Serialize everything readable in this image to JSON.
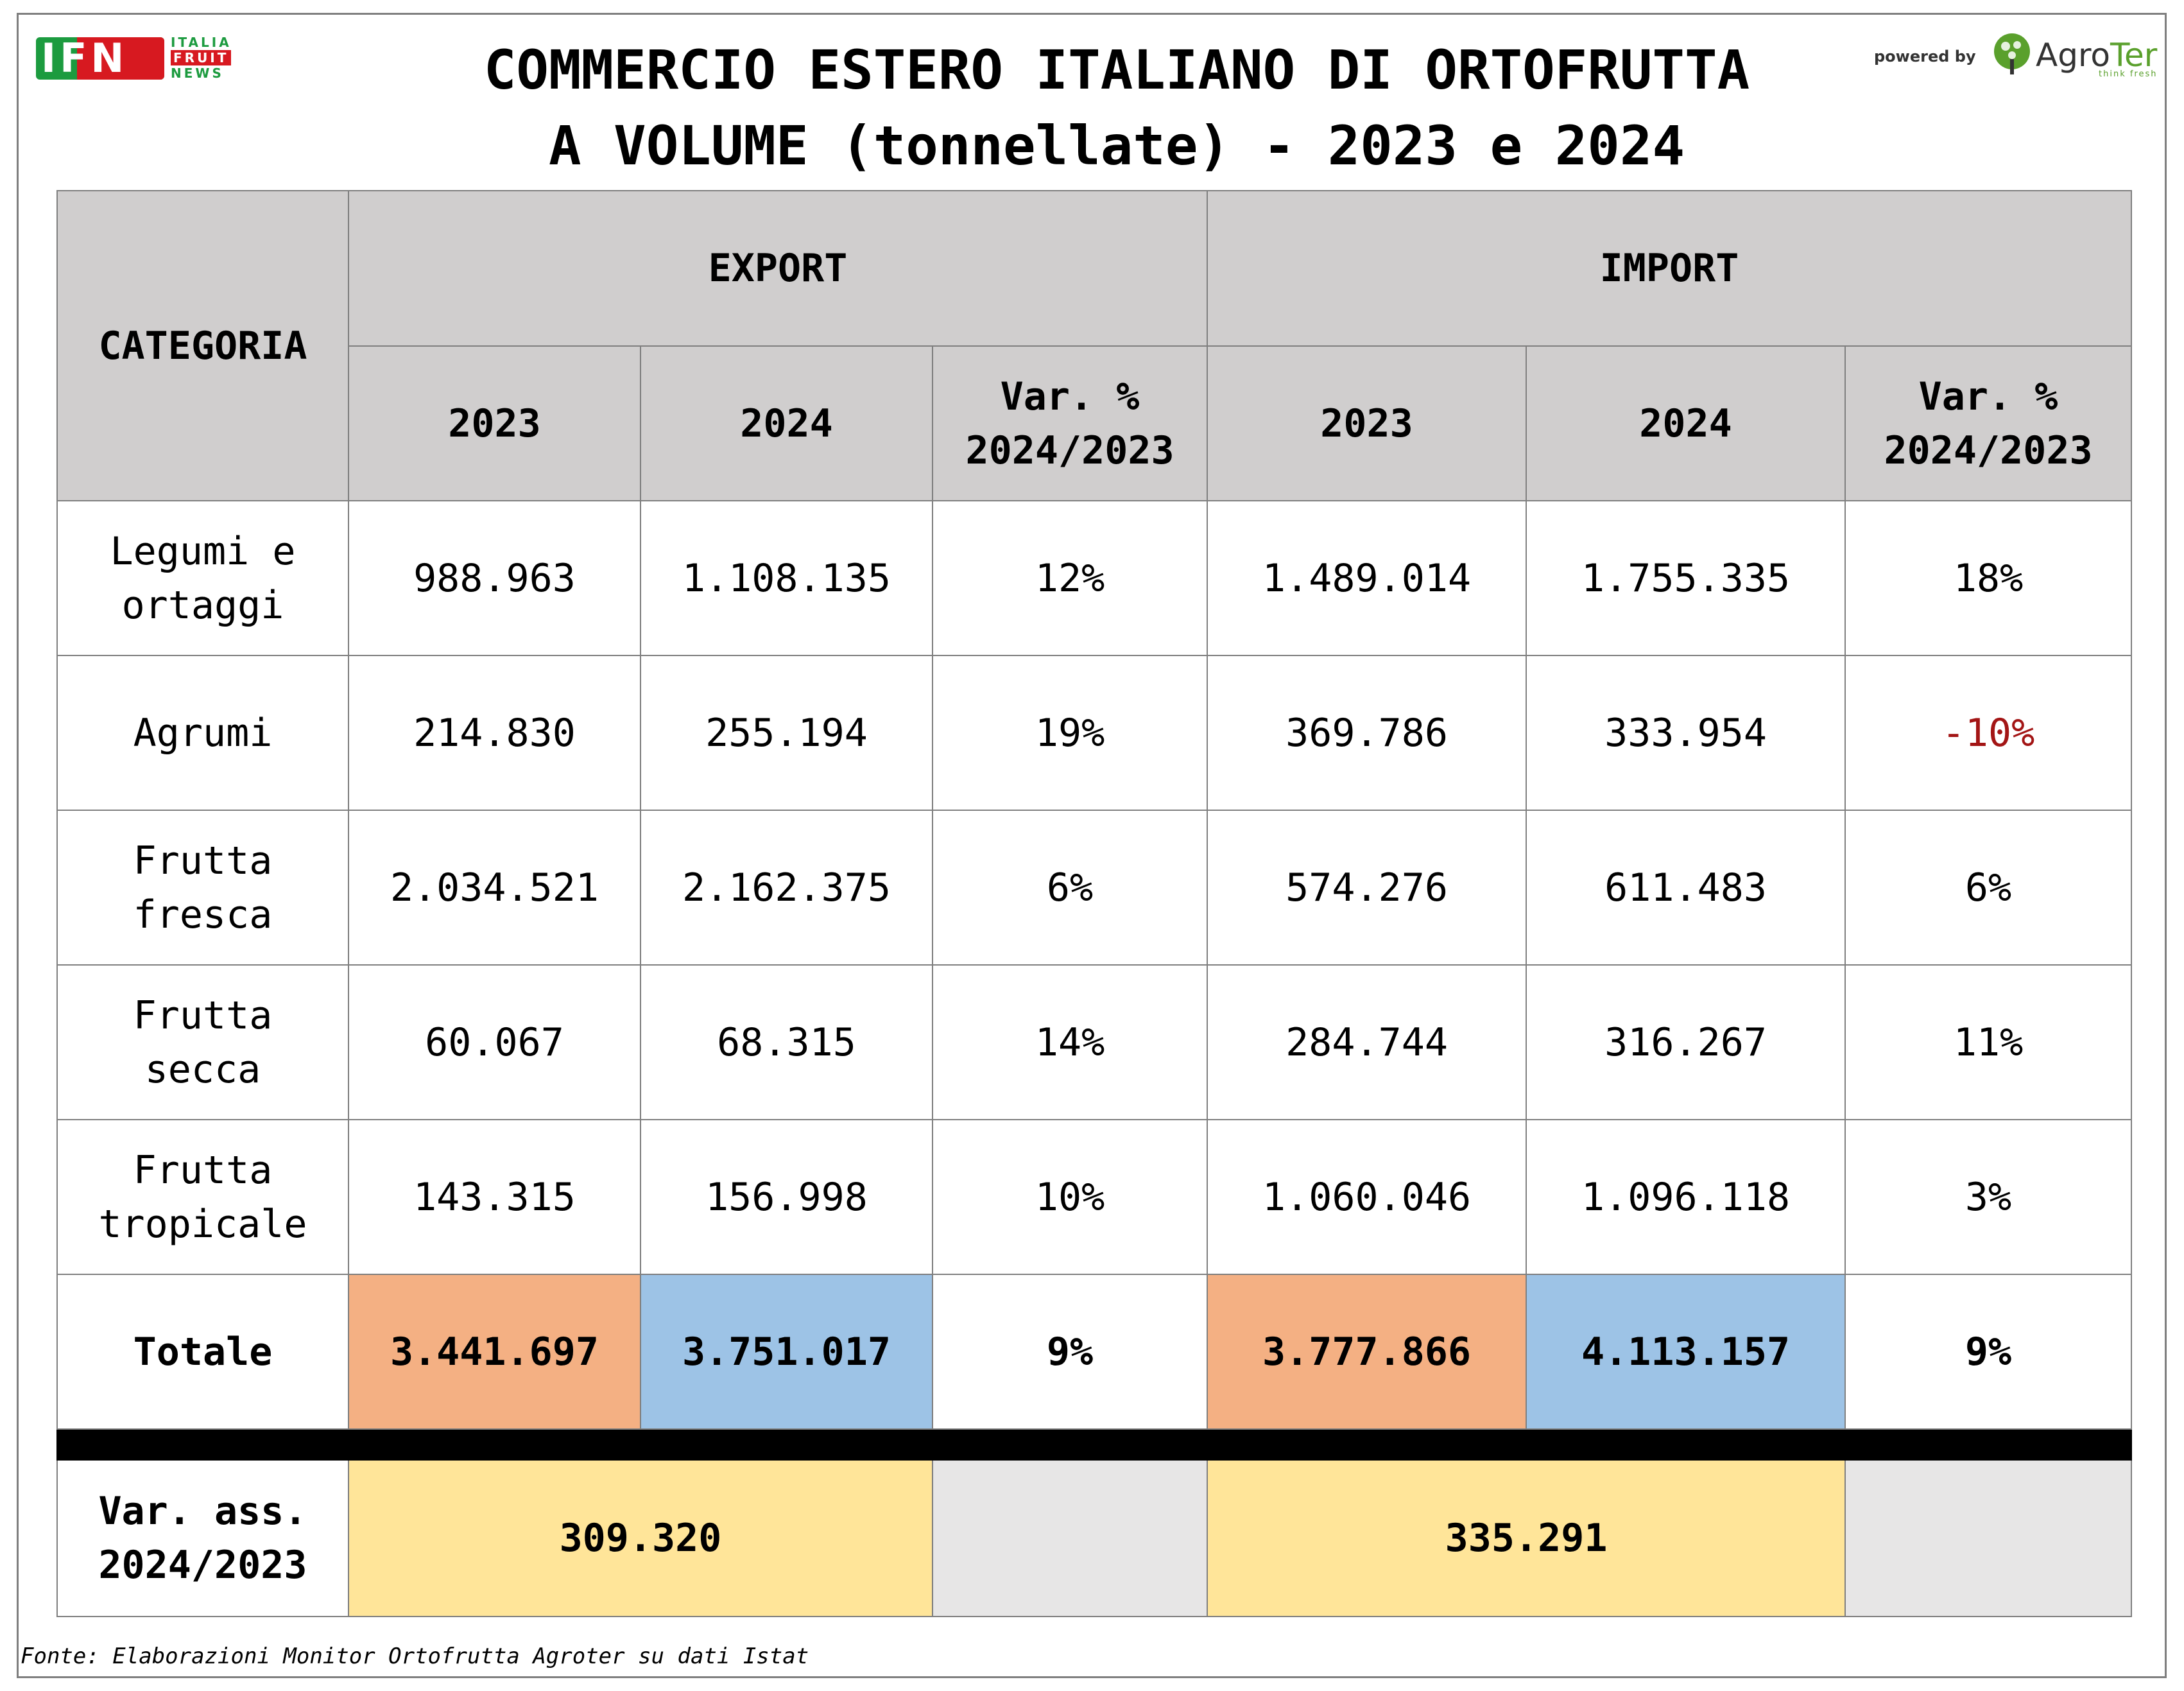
{
  "logo": {
    "letters": "IFN",
    "line1": "ITALIA",
    "line2": "FRUIT",
    "line3": "NEWS"
  },
  "title": {
    "line1": "COMMERCIO ESTERO ITALIANO DI ORTOFRUTTA",
    "line2": "A VOLUME (tonnellate) - 2023 e 2024"
  },
  "sponsor": {
    "powered_by": "powered by",
    "brand_prefix": "Agro",
    "brand_suffix": "Ter",
    "tagline": "think fresh"
  },
  "table": {
    "header": {
      "categoria": "CATEGORIA",
      "export": "EXPORT",
      "import": "IMPORT",
      "col_2023": "2023",
      "col_2024": "2024",
      "var_line1": "Var. %",
      "var_line2": "2024/2023"
    },
    "rows": [
      {
        "category_line1": "Legumi e",
        "category_line2": "ortaggi",
        "exp_2023": "988.963",
        "exp_2024": "1.108.135",
        "exp_var": "12%",
        "imp_2023": "1.489.014",
        "imp_2024": "1.755.335",
        "imp_var": "18%"
      },
      {
        "category_line1": "Agrumi",
        "category_line2": "",
        "exp_2023": "214.830",
        "exp_2024": "255.194",
        "exp_var": "19%",
        "imp_2023": "369.786",
        "imp_2024": "333.954",
        "imp_var": "-10%"
      },
      {
        "category_line1": "Frutta",
        "category_line2": "fresca",
        "exp_2023": "2.034.521",
        "exp_2024": "2.162.375",
        "exp_var": "6%",
        "imp_2023": "574.276",
        "imp_2024": "611.483",
        "imp_var": "6%"
      },
      {
        "category_line1": "Frutta",
        "category_line2": "secca",
        "exp_2023": "60.067",
        "exp_2024": "68.315",
        "exp_var": "14%",
        "imp_2023": "284.744",
        "imp_2024": "316.267",
        "imp_var": "11%"
      },
      {
        "category_line1": "Frutta",
        "category_line2": "tropicale",
        "exp_2023": "143.315",
        "exp_2024": "156.998",
        "exp_var": "10%",
        "imp_2023": "1.060.046",
        "imp_2024": "1.096.118",
        "imp_var": "3%"
      }
    ],
    "total": {
      "label": "Totale",
      "exp_2023": "3.441.697",
      "exp_2024": "3.751.017",
      "exp_var": "9%",
      "imp_2023": "3.777.866",
      "imp_2024": "4.113.157",
      "imp_var": "9%"
    },
    "var_ass": {
      "label_line1": "Var. ass.",
      "label_line2": "2024/2023",
      "export": "309.320",
      "import": "335.291"
    }
  },
  "source": "Fonte: Elaborazioni Monitor Ortofrutta Agroter su dati Istat",
  "colors": {
    "header_bg": "#d0cece",
    "orange_2023": "#f4b083",
    "blue_2024": "#9dc3e6",
    "yellow_var_ass": "#ffe599",
    "negative_text": "#a31515"
  }
}
